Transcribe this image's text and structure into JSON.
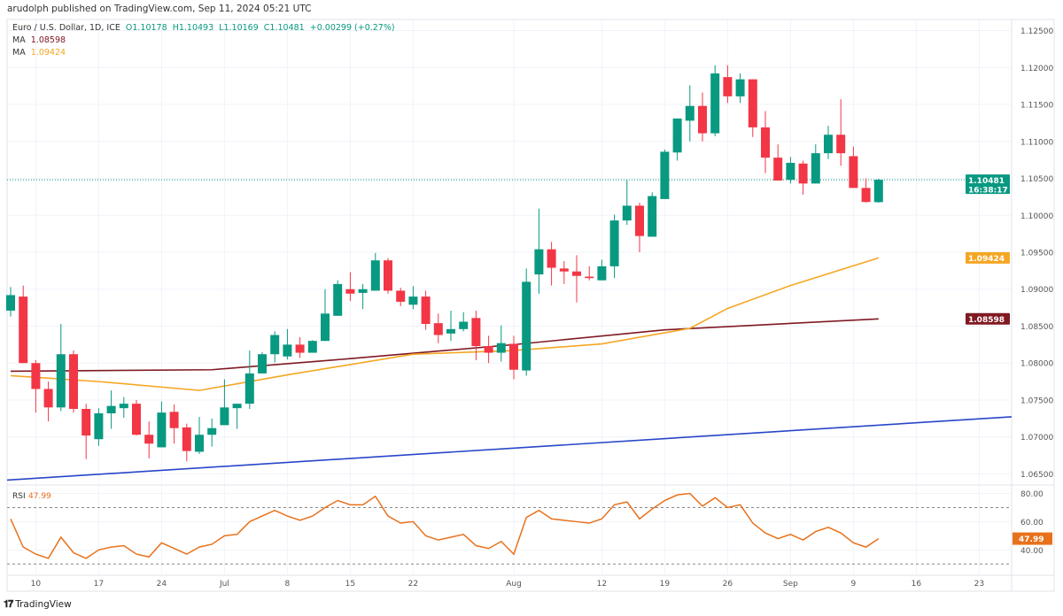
{
  "header": {
    "published": "arudolph published on TradingView.com, Sep 11, 2024 05:21 UTC",
    "symbol": "Euro / U.S. Dollar, 1D, ICE",
    "ohlc": {
      "o": "O1.10178",
      "h": "H1.10493",
      "l": "L1.10169",
      "c": "C1.10481",
      "change": "+0.00299 (+0.27%)"
    },
    "ma1": {
      "label": "MA",
      "value": "1.08598"
    },
    "ma2": {
      "label": "MA",
      "value": "1.09424"
    },
    "rsi": {
      "label": "RSI",
      "value": "47.99"
    }
  },
  "footer": {
    "brand": "TradingView",
    "logo_text": "17"
  },
  "colors": {
    "up": "#089981",
    "down": "#f23645",
    "ma200": "#801922",
    "ma50": "#f5a623",
    "trend": "#2846c8",
    "rsi": "#e8711c",
    "grid": "#f0f3fa"
  },
  "chart_data": {
    "type": "candlestick",
    "title": "",
    "price_axis": {
      "range": [
        1.0635,
        1.1265
      ],
      "ticks": [
        "1.12500",
        "1.12000",
        "1.11500",
        "1.11000",
        "1.10500",
        "1.10000",
        "1.09500",
        "1.09000",
        "1.08500",
        "1.08000",
        "1.07500",
        "1.07000",
        "1.06500"
      ]
    },
    "last_price": {
      "value": "1.10481",
      "countdown": "16:38:17"
    },
    "x_axis": {
      "labels": [
        {
          "label": "10",
          "date": "2024-06-10"
        },
        {
          "label": "17",
          "date": "2024-06-17"
        },
        {
          "label": "24",
          "date": "2024-06-24"
        },
        {
          "label": "Jul",
          "date": "2024-07-01"
        },
        {
          "label": "8",
          "date": "2024-07-08"
        },
        {
          "label": "15",
          "date": "2024-07-15"
        },
        {
          "label": "22",
          "date": "2024-07-22"
        },
        {
          "label": "Aug",
          "date": "2024-08-01"
        },
        {
          "label": "12",
          "date": "2024-08-12"
        },
        {
          "label": "19",
          "date": "2024-08-19"
        },
        {
          "label": "26",
          "date": "2024-08-26"
        },
        {
          "label": "Sep",
          "date": "2024-09-02"
        },
        {
          "label": "9",
          "date": "2024-09-09"
        },
        {
          "label": "16",
          "date": "2024-09-16"
        },
        {
          "label": "23",
          "date": "2024-09-23"
        }
      ]
    },
    "candles_columns": [
      "date",
      "open",
      "high",
      "low",
      "close"
    ],
    "candles": [
      [
        "2024-06-06",
        1.0871,
        1.0903,
        1.0863,
        1.0892
      ],
      [
        "2024-06-07",
        1.089,
        1.0905,
        1.08,
        1.08
      ],
      [
        "2024-06-10",
        1.08,
        1.0804,
        1.0733,
        1.0765
      ],
      [
        "2024-06-11",
        1.0765,
        1.0775,
        1.0721,
        1.074
      ],
      [
        "2024-06-12",
        1.074,
        1.0853,
        1.0735,
        1.0812
      ],
      [
        "2024-06-13",
        1.0812,
        1.0817,
        1.0733,
        1.0738
      ],
      [
        "2024-06-14",
        1.0738,
        1.0745,
        1.067,
        1.0702
      ],
      [
        "2024-06-17",
        1.0697,
        1.0739,
        1.0688,
        1.0732
      ],
      [
        "2024-06-18",
        1.0732,
        1.0763,
        1.0711,
        1.0742
      ],
      [
        "2024-06-19",
        1.0739,
        1.0754,
        1.0726,
        1.0745
      ],
      [
        "2024-06-20",
        1.0745,
        1.075,
        1.0702,
        1.0703
      ],
      [
        "2024-06-21",
        1.0703,
        1.0721,
        1.0671,
        1.0691
      ],
      [
        "2024-06-24",
        1.0686,
        1.0748,
        1.0686,
        1.0733
      ],
      [
        "2024-06-25",
        1.0734,
        1.0744,
        1.0691,
        1.0712
      ],
      [
        "2024-06-26",
        1.0713,
        1.0718,
        1.0667,
        1.0681
      ],
      [
        "2024-06-27",
        1.068,
        1.0727,
        1.0677,
        1.0703
      ],
      [
        "2024-06-28",
        1.0703,
        1.0725,
        1.0687,
        1.0712
      ],
      [
        "2024-07-01",
        1.0716,
        1.0778,
        1.0716,
        1.074
      ],
      [
        "2024-07-02",
        1.0739,
        1.0745,
        1.0711,
        1.0745
      ],
      [
        "2024-07-03",
        1.0745,
        1.0817,
        1.0738,
        1.0786
      ],
      [
        "2024-07-04",
        1.0786,
        1.0815,
        1.0786,
        1.0812
      ],
      [
        "2024-07-05",
        1.0812,
        1.0843,
        1.0801,
        1.0838
      ],
      [
        "2024-07-08",
        1.0809,
        1.0846,
        1.0805,
        1.0825
      ],
      [
        "2024-07-09",
        1.0825,
        1.0835,
        1.0807,
        1.0814
      ],
      [
        "2024-07-10",
        1.0814,
        1.0831,
        1.0814,
        1.083
      ],
      [
        "2024-07-11",
        1.083,
        1.09,
        1.083,
        1.0867
      ],
      [
        "2024-07-12",
        1.0864,
        1.0912,
        1.0864,
        1.0907
      ],
      [
        "2024-07-15",
        1.09,
        1.0923,
        1.0884,
        1.0894
      ],
      [
        "2024-07-16",
        1.0895,
        1.0907,
        1.0873,
        1.09
      ],
      [
        "2024-07-17",
        1.0898,
        1.0949,
        1.0898,
        1.0939
      ],
      [
        "2024-07-18",
        1.0939,
        1.0942,
        1.0894,
        1.0898
      ],
      [
        "2024-07-19",
        1.0898,
        1.0902,
        1.0877,
        1.0883
      ],
      [
        "2024-07-22",
        1.0879,
        1.0904,
        1.0873,
        1.089
      ],
      [
        "2024-07-23",
        1.089,
        1.0898,
        1.0845,
        1.0853
      ],
      [
        "2024-07-24",
        1.0854,
        1.0867,
        1.0827,
        1.0838
      ],
      [
        "2024-07-25",
        1.084,
        1.0871,
        1.083,
        1.0846
      ],
      [
        "2024-07-26",
        1.0846,
        1.0869,
        1.0843,
        1.0856
      ],
      [
        "2024-07-29",
        1.0861,
        1.0871,
        1.0804,
        1.0823
      ],
      [
        "2024-07-30",
        1.0823,
        1.0837,
        1.08,
        1.0814
      ],
      [
        "2024-07-31",
        1.0814,
        1.0851,
        1.0802,
        1.0827
      ],
      [
        "2024-08-01",
        1.0826,
        1.0837,
        1.0778,
        1.0791
      ],
      [
        "2024-08-02",
        1.079,
        1.0928,
        1.0783,
        1.091
      ],
      [
        "2024-08-05",
        1.092,
        1.1009,
        1.0894,
        1.0954
      ],
      [
        "2024-08-06",
        1.0954,
        1.0964,
        1.0905,
        1.0929
      ],
      [
        "2024-08-07",
        1.0928,
        1.0938,
        1.0907,
        1.0924
      ],
      [
        "2024-08-08",
        1.0924,
        1.0946,
        1.0882,
        1.0918
      ],
      [
        "2024-08-09",
        1.0917,
        1.0931,
        1.0912,
        1.0915
      ],
      [
        "2024-08-12",
        1.0912,
        1.094,
        1.0912,
        1.0931
      ],
      [
        "2024-08-13",
        1.0931,
        1.1001,
        1.0915,
        1.0993
      ],
      [
        "2024-08-14",
        1.0993,
        1.1048,
        1.0987,
        1.1013
      ],
      [
        "2024-08-15",
        1.1013,
        1.1017,
        1.095,
        1.0972
      ],
      [
        "2024-08-16",
        1.0971,
        1.1031,
        1.0971,
        1.1026
      ],
      [
        "2024-08-19",
        1.1022,
        1.1089,
        1.1022,
        1.1086
      ],
      [
        "2024-08-20",
        1.1085,
        1.1131,
        1.1074,
        1.1131
      ],
      [
        "2024-08-21",
        1.1128,
        1.1176,
        1.11,
        1.1148
      ],
      [
        "2024-08-22",
        1.1148,
        1.1166,
        1.11,
        1.1111
      ],
      [
        "2024-08-23",
        1.1111,
        1.1203,
        1.1107,
        1.1192
      ],
      [
        "2024-08-26",
        1.1187,
        1.1203,
        1.1152,
        1.1161
      ],
      [
        "2024-08-27",
        1.1161,
        1.1192,
        1.1152,
        1.1184
      ],
      [
        "2024-08-28",
        1.1184,
        1.1184,
        1.1106,
        1.1119
      ],
      [
        "2024-08-29",
        1.1119,
        1.1141,
        1.1057,
        1.1078
      ],
      [
        "2024-08-30",
        1.1078,
        1.1096,
        1.1047,
        1.1047
      ],
      [
        "2024-09-02",
        1.1048,
        1.1079,
        1.1043,
        1.1071
      ],
      [
        "2024-09-03",
        1.107,
        1.1074,
        1.1028,
        1.1043
      ],
      [
        "2024-09-04",
        1.1043,
        1.1096,
        1.1043,
        1.1084
      ],
      [
        "2024-09-05",
        1.1084,
        1.1121,
        1.1076,
        1.1109
      ],
      [
        "2024-09-06",
        1.1109,
        1.1157,
        1.1067,
        1.1084
      ],
      [
        "2024-09-09",
        1.108,
        1.1093,
        1.1037,
        1.1037
      ],
      [
        "2024-09-10",
        1.1037,
        1.105,
        1.1017,
        1.1018
      ],
      [
        "2024-09-11",
        1.10178,
        1.10493,
        1.10169,
        1.10481
      ]
    ],
    "ma_slow": {
      "last": 1.08598,
      "points": [
        [
          "2024-06-06",
          1.0789
        ],
        [
          "2024-06-28",
          1.0791
        ],
        [
          "2024-07-15",
          1.0806
        ],
        [
          "2024-08-01",
          1.0825
        ],
        [
          "2024-08-19",
          1.0845
        ],
        [
          "2024-09-11",
          1.08598
        ]
      ]
    },
    "ma_fast": {
      "last": 1.09424,
      "points": [
        [
          "2024-06-06",
          1.0783
        ],
        [
          "2024-06-17",
          1.0775
        ],
        [
          "2024-06-27",
          1.0763
        ],
        [
          "2024-07-08",
          1.0784
        ],
        [
          "2024-07-22",
          1.0812
        ],
        [
          "2024-08-01",
          1.0817
        ],
        [
          "2024-08-12",
          1.0826
        ],
        [
          "2024-08-21",
          1.0847
        ],
        [
          "2024-08-26",
          1.0874
        ],
        [
          "2024-09-02",
          1.0905
        ],
        [
          "2024-09-11",
          1.09424
        ]
      ]
    },
    "trendline": {
      "points": [
        [
          "2024-06-06",
          1.0642
        ],
        [
          "2024-09-11",
          1.0716
        ]
      ],
      "extend": "right"
    },
    "rsi": {
      "range": [
        22,
        86
      ],
      "ticks": [
        "80.00",
        "60.00",
        "40.00"
      ],
      "bands": [
        70,
        30
      ],
      "last": "47.99",
      "values": [
        62,
        42,
        37,
        34,
        49,
        38,
        34,
        40,
        42,
        43,
        37,
        35,
        45,
        41,
        37,
        42,
        44,
        50,
        51,
        60,
        64,
        68,
        64,
        61,
        64,
        70,
        75,
        72,
        72,
        78,
        64,
        59,
        60,
        50,
        47,
        49,
        51,
        43,
        41,
        46,
        37,
        63,
        68,
        62,
        61,
        60,
        59,
        62,
        72,
        74,
        62,
        69,
        75,
        79,
        80,
        71,
        77,
        70,
        72,
        59,
        52,
        48,
        51,
        47,
        53,
        56,
        52,
        45,
        42,
        47.99
      ]
    }
  }
}
